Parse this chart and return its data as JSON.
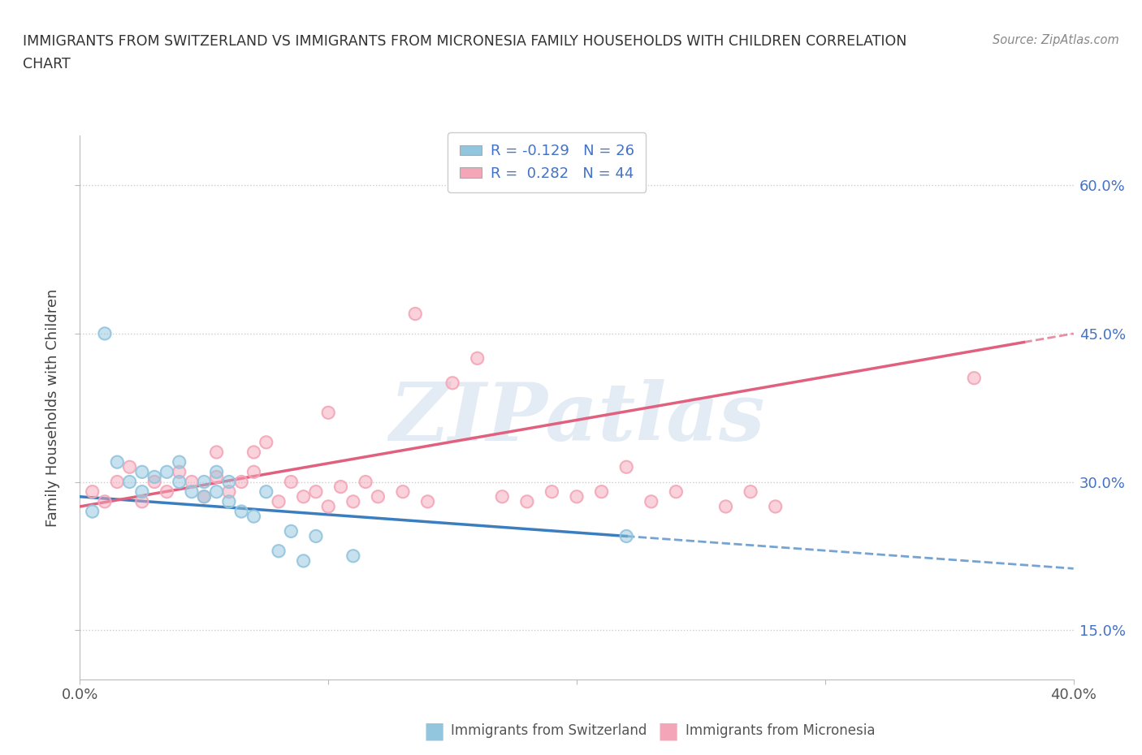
{
  "title_line1": "IMMIGRANTS FROM SWITZERLAND VS IMMIGRANTS FROM MICRONESIA FAMILY HOUSEHOLDS WITH CHILDREN CORRELATION",
  "title_line2": "CHART",
  "source": "Source: ZipAtlas.com",
  "watermark": "ZIPatlas",
  "legend_blue_label": "R = -0.129   N = 26",
  "legend_pink_label": "R =  0.282   N = 44",
  "blue_color": "#92c5de",
  "pink_color": "#f4a6b8",
  "blue_line_color": "#3a7ebf",
  "pink_line_color": "#e0607e",
  "grid_color": "#cccccc",
  "background_color": "#ffffff",
  "blue_scatter_x": [
    0.5,
    1.0,
    1.5,
    2.0,
    2.5,
    2.5,
    3.0,
    3.5,
    4.0,
    4.0,
    4.5,
    5.0,
    5.0,
    5.5,
    5.5,
    6.0,
    6.0,
    6.5,
    7.0,
    7.5,
    8.0,
    8.5,
    9.0,
    9.5,
    11.0,
    22.0
  ],
  "blue_scatter_y": [
    27.0,
    45.0,
    32.0,
    30.0,
    31.0,
    29.0,
    30.5,
    31.0,
    30.0,
    32.0,
    29.0,
    28.5,
    30.0,
    29.0,
    31.0,
    28.0,
    30.0,
    27.0,
    26.5,
    29.0,
    23.0,
    25.0,
    22.0,
    24.5,
    22.5,
    24.5
  ],
  "pink_scatter_x": [
    0.5,
    1.0,
    1.5,
    2.0,
    2.5,
    3.0,
    3.5,
    4.0,
    4.5,
    5.0,
    5.5,
    5.5,
    6.0,
    6.5,
    7.0,
    7.0,
    7.5,
    8.0,
    8.5,
    9.0,
    9.5,
    10.0,
    10.5,
    11.0,
    11.5,
    12.0,
    13.0,
    14.0,
    15.0,
    17.0,
    18.0,
    19.0,
    20.0,
    21.0,
    22.0,
    23.0,
    24.0,
    26.0,
    27.0,
    28.0,
    13.5,
    16.0,
    36.0,
    10.0
  ],
  "pink_scatter_y": [
    29.0,
    28.0,
    30.0,
    31.5,
    28.0,
    30.0,
    29.0,
    31.0,
    30.0,
    28.5,
    30.5,
    33.0,
    29.0,
    30.0,
    33.0,
    31.0,
    34.0,
    28.0,
    30.0,
    28.5,
    29.0,
    27.5,
    29.5,
    28.0,
    30.0,
    28.5,
    29.0,
    28.0,
    40.0,
    28.5,
    28.0,
    29.0,
    28.5,
    29.0,
    31.5,
    28.0,
    29.0,
    27.5,
    29.0,
    27.5,
    47.0,
    42.5,
    40.5,
    37.0
  ],
  "blue_line_x0": 0.0,
  "blue_line_y0": 28.5,
  "blue_line_x1": 22.0,
  "blue_line_y1": 24.5,
  "blue_line_xdash_x0": 22.0,
  "blue_line_xdash_x1": 40.0,
  "pink_line_x0": 0.0,
  "pink_line_y0": 27.5,
  "pink_line_x1": 40.0,
  "pink_line_y1": 45.0,
  "xlim": [
    0,
    40
  ],
  "ylim": [
    10,
    65
  ],
  "ytick_labels": [
    "15.0%",
    "30.0%",
    "45.0%",
    "60.0%"
  ],
  "ytick_values": [
    15,
    30,
    45,
    60
  ],
  "right_axis_color": "#4472c4"
}
